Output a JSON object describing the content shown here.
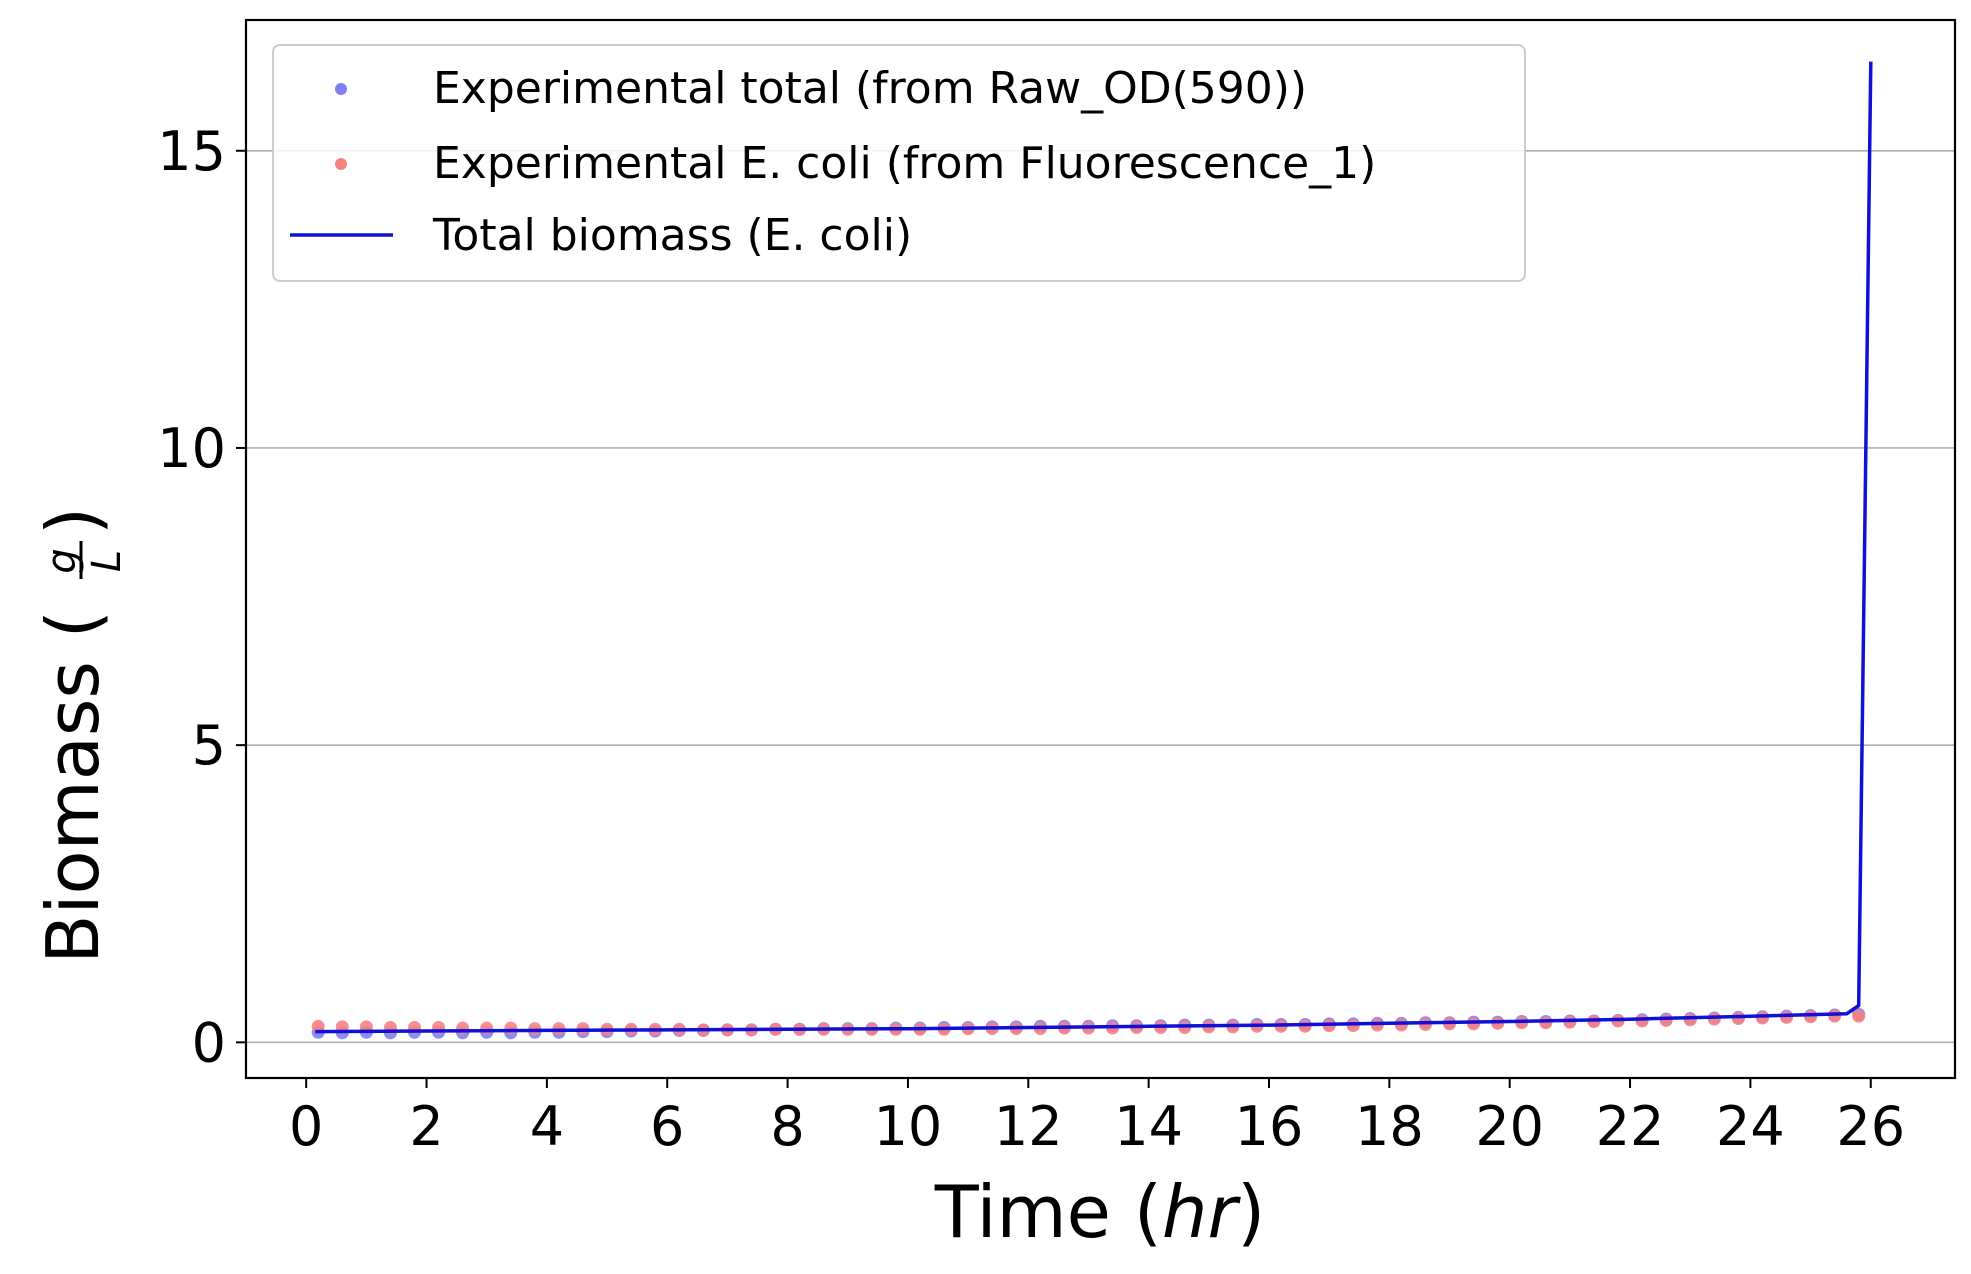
{
  "chart_data": {
    "type": "line",
    "title": "",
    "xlabel": {
      "main": "Time (",
      "italic": "hr",
      "close": ")"
    },
    "ylabel": {
      "main": "Biomass (",
      "numerator": "g",
      "denominator": "L",
      "close": ")"
    },
    "xlim": [
      -1.0,
      27.4
    ],
    "ylim": [
      -0.6,
      17.2
    ],
    "xticks": [
      0,
      2,
      4,
      6,
      8,
      10,
      12,
      14,
      16,
      18,
      20,
      22,
      24,
      26
    ],
    "xtick_labels": [
      "0",
      "2",
      "4",
      "6",
      "8",
      "10",
      "12",
      "14",
      "16",
      "18",
      "20",
      "22",
      "24",
      "26"
    ],
    "yticks": [
      0,
      5,
      10,
      15
    ],
    "ytick_labels": [
      "0",
      "5",
      "10",
      "15"
    ],
    "grid": "horizontal",
    "legend_position": "top-left",
    "colors": {
      "total_points": "#7f7ff2",
      "ecoli_points": "#f78282",
      "model_line": "#1010d6",
      "grid": "#b0b0b0",
      "axes": "#000000"
    },
    "series": [
      {
        "name": "Experimental total (from Raw_OD(590))",
        "kind": "scatter",
        "color": "#7f7ff2",
        "x": [
          0.2,
          0.6,
          1.0,
          1.4,
          1.8,
          2.2,
          2.6,
          3.0,
          3.4,
          3.8,
          4.2,
          4.6,
          5.0,
          5.4,
          5.8,
          6.2,
          6.6,
          7.0,
          7.4,
          7.8,
          8.2,
          8.6,
          9.0,
          9.4,
          9.8,
          10.2,
          10.6,
          11.0,
          11.4,
          11.8,
          12.2,
          12.6,
          13.0,
          13.4,
          13.8,
          14.2,
          14.6,
          15.0,
          15.4,
          15.8,
          16.2,
          16.6,
          17.0,
          17.4,
          17.8,
          18.2,
          18.6,
          19.0,
          19.4,
          19.8,
          20.2,
          20.6,
          21.0,
          21.4,
          21.8,
          22.2,
          22.6,
          23.0,
          23.4,
          23.8,
          24.2,
          24.6,
          25.0,
          25.4,
          25.8
        ],
        "y": [
          0.17,
          0.16,
          0.17,
          0.16,
          0.17,
          0.17,
          0.16,
          0.17,
          0.16,
          0.17,
          0.17,
          0.18,
          0.18,
          0.19,
          0.19,
          0.2,
          0.2,
          0.21,
          0.21,
          0.22,
          0.22,
          0.23,
          0.23,
          0.23,
          0.24,
          0.24,
          0.25,
          0.25,
          0.26,
          0.26,
          0.27,
          0.27,
          0.27,
          0.28,
          0.28,
          0.28,
          0.29,
          0.29,
          0.29,
          0.3,
          0.3,
          0.3,
          0.31,
          0.31,
          0.32,
          0.32,
          0.33,
          0.33,
          0.34,
          0.34,
          0.35,
          0.35,
          0.36,
          0.36,
          0.37,
          0.38,
          0.39,
          0.4,
          0.41,
          0.42,
          0.43,
          0.44,
          0.45,
          0.46,
          0.47
        ]
      },
      {
        "name": "Experimental E. coli (from Fluorescence_1)",
        "kind": "scatter",
        "color": "#f78282",
        "x": [
          0.2,
          0.6,
          1.0,
          1.4,
          1.8,
          2.2,
          2.6,
          3.0,
          3.4,
          3.8,
          4.2,
          4.6,
          5.0,
          5.4,
          5.8,
          6.2,
          6.6,
          7.0,
          7.4,
          7.8,
          8.2,
          8.6,
          9.0,
          9.4,
          9.8,
          10.2,
          10.6,
          11.0,
          11.4,
          11.8,
          12.2,
          12.6,
          13.0,
          13.4,
          13.8,
          14.2,
          14.6,
          15.0,
          15.4,
          15.8,
          16.2,
          16.6,
          17.0,
          17.4,
          17.8,
          18.2,
          18.6,
          19.0,
          19.4,
          19.8,
          20.2,
          20.6,
          21.0,
          21.4,
          21.8,
          22.2,
          22.6,
          23.0,
          23.4,
          23.8,
          24.2,
          24.6,
          25.0,
          25.4,
          25.8
        ],
        "y": [
          0.27,
          0.26,
          0.26,
          0.25,
          0.25,
          0.25,
          0.24,
          0.24,
          0.24,
          0.23,
          0.23,
          0.23,
          0.22,
          0.22,
          0.22,
          0.22,
          0.21,
          0.21,
          0.21,
          0.22,
          0.22,
          0.22,
          0.22,
          0.22,
          0.22,
          0.22,
          0.22,
          0.23,
          0.23,
          0.23,
          0.23,
          0.24,
          0.24,
          0.24,
          0.25,
          0.25,
          0.25,
          0.26,
          0.26,
          0.27,
          0.27,
          0.27,
          0.28,
          0.28,
          0.29,
          0.29,
          0.3,
          0.31,
          0.31,
          0.32,
          0.33,
          0.33,
          0.34,
          0.35,
          0.36,
          0.36,
          0.37,
          0.38,
          0.39,
          0.4,
          0.41,
          0.42,
          0.43,
          0.44,
          0.44
        ]
      },
      {
        "name": "Total biomass (E. coli)",
        "kind": "line",
        "color": "#1010d6",
        "x": [
          0.15,
          2.0,
          4.0,
          6.0,
          8.0,
          10.0,
          12.0,
          14.0,
          16.0,
          18.0,
          20.0,
          22.0,
          24.0,
          25.6,
          25.8,
          26.0
        ],
        "y": [
          0.18,
          0.19,
          0.2,
          0.21,
          0.22,
          0.23,
          0.25,
          0.27,
          0.29,
          0.32,
          0.35,
          0.39,
          0.44,
          0.48,
          0.62,
          16.5
        ]
      }
    ]
  }
}
